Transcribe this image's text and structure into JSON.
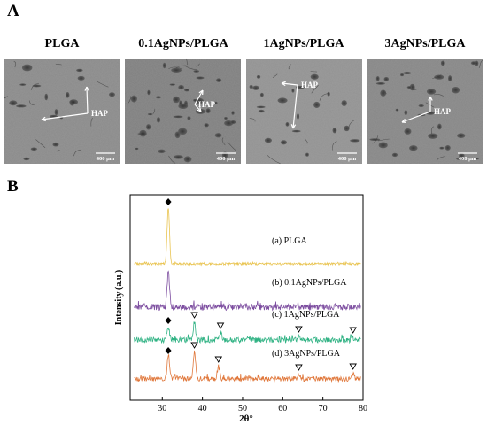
{
  "figure": {
    "panel_a_label": "A",
    "panel_b_label": "B"
  },
  "sem_panels": [
    {
      "title": "PLGA",
      "annotation": "HAP",
      "scale_bar": "400 μm"
    },
    {
      "title": "0.1AgNPs/PLGA",
      "annotation": "HAP",
      "scale_bar": "400 μm"
    },
    {
      "title": "1AgNPs/PLGA",
      "annotation": "HAP",
      "scale_bar": "400 μm"
    },
    {
      "title": "3AgNPs/PLGA",
      "annotation": "HAP",
      "scale_bar": "400 μm"
    }
  ],
  "chart_data": {
    "type": "line",
    "title": "",
    "xlabel": "2θ°",
    "ylabel": "Intensity (a.u.)",
    "xlim": [
      22,
      80
    ],
    "xticks": [
      30,
      40,
      50,
      60,
      70,
      80
    ],
    "grid": false,
    "series": [
      {
        "name": "(a) PLGA",
        "color": "#e9c451",
        "peaks": [
          {
            "x": 31.5,
            "marker": "diamond"
          }
        ]
      },
      {
        "name": "(b) 0.1AgNPs/PLGA",
        "color": "#7d4ea0",
        "peaks": [
          {
            "x": 31.5,
            "marker": "none"
          }
        ]
      },
      {
        "name": "(c) 1AgNPs/PLGA",
        "color": "#2fb283",
        "peaks": [
          {
            "x": 31.5,
            "marker": "diamond"
          },
          {
            "x": 38.0,
            "marker": "triangle"
          },
          {
            "x": 44.5,
            "marker": "triangle"
          },
          {
            "x": 64.0,
            "marker": "triangle"
          },
          {
            "x": 77.5,
            "marker": "triangle"
          }
        ]
      },
      {
        "name": "(d) 3AgNPs/PLGA",
        "color": "#e0783c",
        "peaks": [
          {
            "x": 31.5,
            "marker": "diamond"
          },
          {
            "x": 38.0,
            "marker": "triangle"
          },
          {
            "x": 44.0,
            "marker": "triangle"
          },
          {
            "x": 64.0,
            "marker": "triangle"
          },
          {
            "x": 77.5,
            "marker": "triangle"
          }
        ]
      }
    ]
  }
}
